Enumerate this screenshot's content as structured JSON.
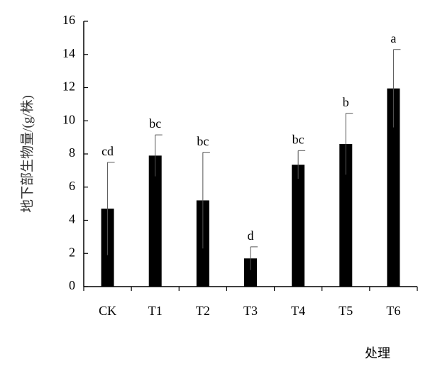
{
  "chart_data": {
    "type": "bar",
    "y_label": "地下部生物量/(g/株)",
    "x_label": "处理",
    "categories": [
      "CK",
      "T1",
      "T2",
      "T3",
      "T4",
      "T5",
      "T6"
    ],
    "values": [
      4.7,
      7.9,
      5.2,
      1.7,
      7.35,
      8.6,
      11.95
    ],
    "errors": [
      2.8,
      1.25,
      2.9,
      0.7,
      0.85,
      1.85,
      2.35
    ],
    "labels": [
      "cd",
      "bc",
      "bc",
      "d",
      "bc",
      "b",
      "a"
    ],
    "color": "#000000",
    "ylim": [
      0,
      16
    ],
    "yticks": [
      0,
      2,
      4,
      6,
      8,
      10,
      12,
      14,
      16
    ]
  }
}
